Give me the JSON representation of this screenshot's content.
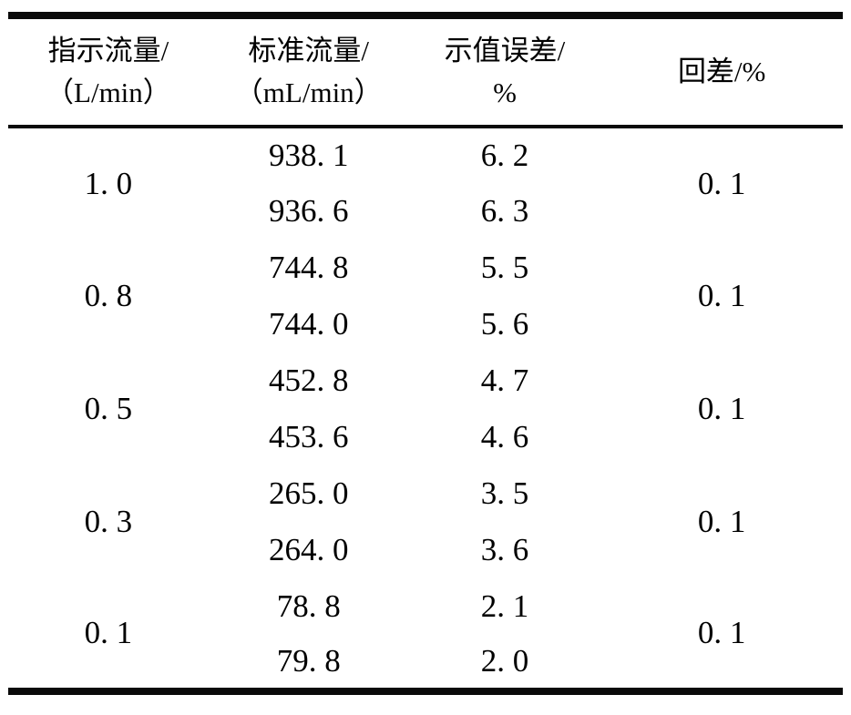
{
  "table": {
    "headers": [
      {
        "line1": "指示流量/",
        "line2": "（L/min）"
      },
      {
        "line1": "标准流量/",
        "line2": "（mL/min）"
      },
      {
        "line1": "示值误差/",
        "line2": "%"
      },
      {
        "line1": "回差/%",
        "line2": ""
      }
    ],
    "groups": [
      {
        "indicated": "1. 0",
        "standard": [
          "938. 1",
          "936. 6"
        ],
        "error": [
          "6. 2",
          "6. 3"
        ],
        "hysteresis": "0. 1"
      },
      {
        "indicated": "0. 8",
        "standard": [
          "744. 8",
          "744. 0"
        ],
        "error": [
          "5. 5",
          "5. 6"
        ],
        "hysteresis": "0. 1"
      },
      {
        "indicated": "0. 5",
        "standard": [
          "452. 8",
          "453. 6"
        ],
        "error": [
          "4. 7",
          "4. 6"
        ],
        "hysteresis": "0. 1"
      },
      {
        "indicated": "0. 3",
        "standard": [
          "265. 0",
          "264. 0"
        ],
        "error": [
          "3. 5",
          "3. 6"
        ],
        "hysteresis": "0. 1"
      },
      {
        "indicated": "0. 1",
        "standard": [
          "78. 8",
          "79. 8"
        ],
        "error": [
          "2. 1",
          "2. 0"
        ],
        "hysteresis": "0. 1"
      }
    ]
  },
  "chart_data": {
    "type": "table",
    "columns": [
      "指示流量/(L/min)",
      "标准流量/(mL/min)",
      "示值误差/%",
      "回差/%"
    ],
    "rows": [
      [
        "1.0",
        "938.1",
        "6.2",
        "0.1"
      ],
      [
        "1.0",
        "936.6",
        "6.3",
        "0.1"
      ],
      [
        "0.8",
        "744.8",
        "5.5",
        "0.1"
      ],
      [
        "0.8",
        "744.0",
        "5.6",
        "0.1"
      ],
      [
        "0.5",
        "452.8",
        "4.7",
        "0.1"
      ],
      [
        "0.5",
        "453.6",
        "4.6",
        "0.1"
      ],
      [
        "0.3",
        "265.0",
        "3.5",
        "0.1"
      ],
      [
        "0.3",
        "264.0",
        "3.6",
        "0.1"
      ],
      [
        "0.1",
        "78.8",
        "2.1",
        "0.1"
      ],
      [
        "0.1",
        "79.8",
        "2.0",
        "0.1"
      ]
    ],
    "notes": {
      "merged_columns": [
        "指示流量/(L/min)",
        "回差/%"
      ],
      "rows_per_group": 2,
      "text_color": "#000000",
      "rule_color": "#0a0a0a",
      "background": "#ffffff"
    }
  }
}
